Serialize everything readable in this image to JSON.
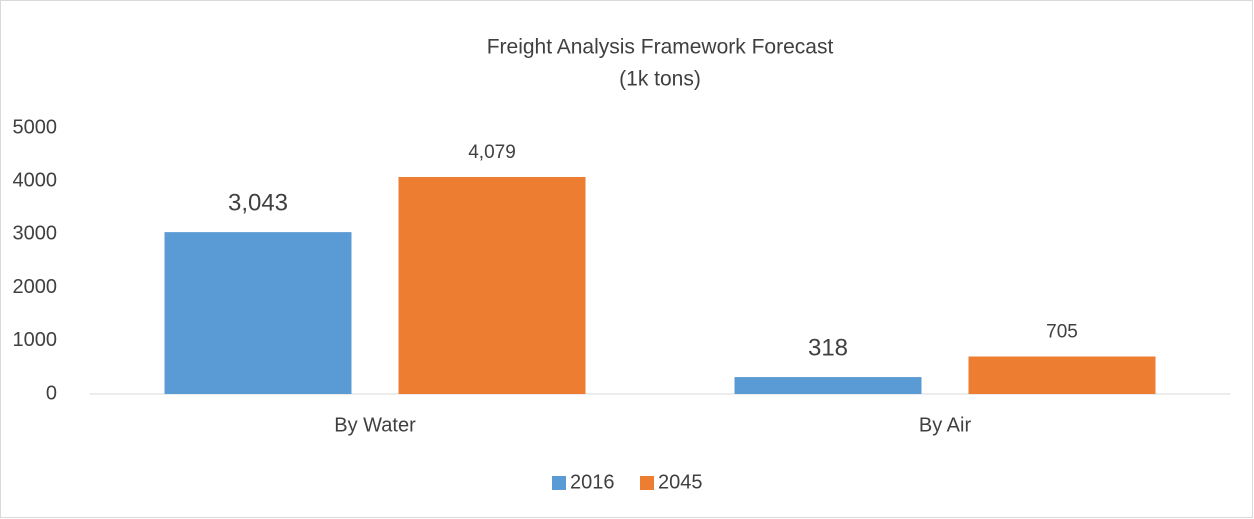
{
  "chart_data": {
    "type": "bar",
    "title": "Freight Analysis Framework Forecast",
    "subtitle": "(1k tons)",
    "categories": [
      "By Water",
      "By Air"
    ],
    "series": [
      {
        "name": "2016",
        "color": "#5b9bd5",
        "values": [
          3043,
          318
        ],
        "value_labels": [
          "3,043",
          "318"
        ]
      },
      {
        "name": "2045",
        "color": "#ed7d31",
        "values": [
          4079,
          705
        ],
        "value_labels": [
          "4,079",
          "705"
        ]
      }
    ],
    "ylim": [
      0,
      5000
    ],
    "yticks": [
      0,
      1000,
      2000,
      3000,
      4000,
      5000
    ],
    "grid": false,
    "legend": "bottom"
  }
}
